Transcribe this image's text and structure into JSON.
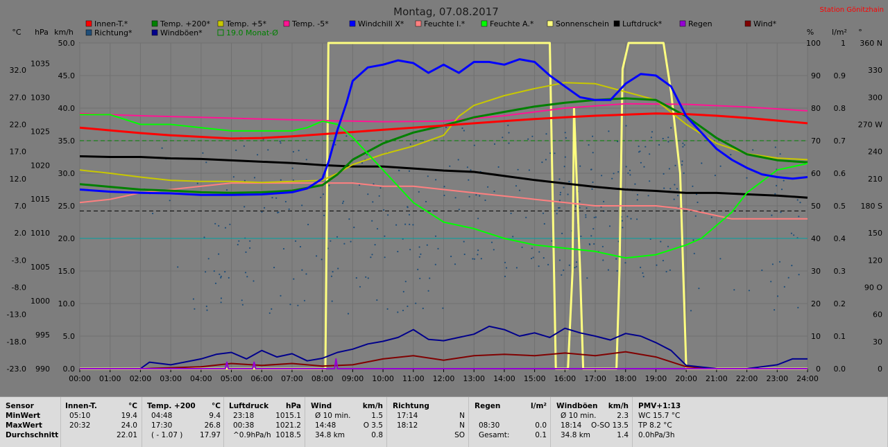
{
  "title": "Montag, 07.08.2017",
  "station": "Station Gönitzhain",
  "axes_left_headers": [
    "°C",
    "hPa",
    "km/h"
  ],
  "axes_right_headers": [
    "%",
    "l/m²",
    "°"
  ],
  "legend": [
    {
      "label": "Innen-T.*",
      "color": "#ff0000"
    },
    {
      "label": "Temp. +200*",
      "color": "#008000"
    },
    {
      "label": "Temp. +5*",
      "color": "#c8c800"
    },
    {
      "label": "Temp. -5*",
      "color": "#ff1493"
    },
    {
      "label": "Windchill X*",
      "color": "#0000ff"
    },
    {
      "label": "Feuchte I.*",
      "color": "#ff8080"
    },
    {
      "label": "Feuchte A.*",
      "color": "#00ff00"
    },
    {
      "label": "Sonnenschein",
      "color": "#ffff80"
    },
    {
      "label": "Luftdruck*",
      "color": "#000000"
    },
    {
      "label": "Regen",
      "color": "#9400d3"
    },
    {
      "label": "Wind*",
      "color": "#800000"
    },
    {
      "label": "Richtung*",
      "color": "#1f4e79"
    },
    {
      "label": "Windböen*",
      "color": "#00008b"
    },
    {
      "label": "19.0 Monat-Ø",
      "color": "#008000"
    }
  ],
  "chart_data": {
    "type": "line",
    "title": "Montag, 07.08.2017",
    "x_ticks": [
      "00:00",
      "01:00",
      "02:00",
      "03:00",
      "04:00",
      "05:00",
      "06:00",
      "07:00",
      "08:00",
      "09:00",
      "10:00",
      "11:00",
      "12:00",
      "13:00",
      "14:00",
      "15:00",
      "16:00",
      "17:00",
      "18:00",
      "19:00",
      "20:00",
      "21:00",
      "22:00",
      "23:00",
      "24:00"
    ],
    "xlim": [
      0,
      24
    ],
    "axes": {
      "temp_c": {
        "ticks": [
          "32.0",
          "27.0",
          "22.0",
          "17.0",
          "12.0",
          "7.0",
          "2.0",
          "-3.0",
          "-8.0",
          "-13.0",
          "-18.0",
          "-23.0"
        ],
        "ylim": [
          -23,
          37
        ]
      },
      "pressure_hpa": {
        "ticks": [
          "1035",
          "1030",
          "1025",
          "1020",
          "1015",
          "1010",
          "1005",
          "1000",
          "995",
          "990"
        ],
        "ylim": [
          990,
          1038
        ]
      },
      "wind_kmh": {
        "ticks": [
          "50.0",
          "45.0",
          "40.0",
          "35.0",
          "30.0",
          "25.0",
          "20.0",
          "15.0",
          "10.0",
          "5.0",
          "0.0"
        ],
        "ylim": [
          0,
          50
        ]
      },
      "humidity_pct": {
        "ticks": [
          "100",
          "90",
          "80",
          "70",
          "60",
          "50",
          "40",
          "30",
          "20",
          "10",
          "0"
        ],
        "ylim": [
          0,
          100
        ]
      },
      "rain_lm2": {
        "ticks": [
          "1",
          "0.9",
          "0.8",
          "0.7",
          "0.6",
          "0.5",
          "0.4",
          "0.3",
          "0.2",
          "0.1",
          "0.0"
        ],
        "ylim": [
          0,
          1
        ]
      },
      "direction_deg": {
        "ticks": [
          "360 N",
          "330",
          "300",
          "270 W",
          "240",
          "210",
          "180 S",
          "150",
          "120",
          "90 O",
          "60",
          "30",
          "0"
        ],
        "ylim": [
          0,
          360
        ]
      }
    },
    "reference_lines": [
      {
        "name": "19.0 Monat-Ø",
        "axis": "temp_c",
        "value": 19.0,
        "color": "#008000",
        "style": "dashed"
      },
      {
        "axis": "pressure_hpa",
        "value": 1013.25,
        "color": "#000000",
        "style": "dashed"
      },
      {
        "axis": "humidity_pct",
        "value": 40,
        "color": "#00a0a0",
        "style": "solid"
      }
    ],
    "series": [
      {
        "name": "Innen-T.*",
        "axis": "temp_c",
        "color": "#ff0000",
        "width": 3,
        "x": [
          0,
          1,
          2,
          3,
          4,
          5,
          6,
          7,
          8,
          9,
          10,
          11,
          12,
          13,
          14,
          15,
          16,
          17,
          18,
          19,
          20,
          21,
          22,
          23,
          24
        ],
        "y": [
          21.4,
          20.9,
          20.4,
          20.0,
          19.7,
          19.4,
          19.5,
          19.8,
          20.2,
          20.6,
          21.0,
          21.4,
          21.8,
          22.2,
          22.6,
          23.0,
          23.3,
          23.6,
          23.8,
          24.0,
          23.9,
          23.6,
          23.2,
          22.7,
          22.2
        ]
      },
      {
        "name": "Temp. +200*",
        "axis": "temp_c",
        "color": "#008000",
        "width": 3,
        "x": [
          0,
          1,
          2,
          3,
          4,
          5,
          6,
          7,
          8,
          8.5,
          9,
          10,
          11,
          12,
          13,
          14,
          15,
          16,
          17,
          18,
          19,
          20,
          21,
          22,
          23,
          24
        ],
        "y": [
          11.0,
          10.5,
          10.0,
          9.8,
          9.5,
          9.4,
          9.5,
          9.8,
          10.8,
          12.8,
          15.5,
          18.5,
          20.5,
          21.8,
          23.3,
          24.3,
          25.3,
          26.0,
          26.5,
          26.8,
          26.5,
          23.5,
          19.5,
          16.5,
          15.4,
          15.0
        ]
      },
      {
        "name": "Temp. +5*",
        "axis": "temp_c",
        "color": "#c8c800",
        "width": 2,
        "x": [
          0,
          1,
          2,
          3,
          4,
          5,
          6,
          7,
          8,
          8.5,
          9,
          10,
          11,
          12,
          12.5,
          13,
          14,
          15,
          16,
          17,
          18,
          19,
          20,
          21,
          22,
          23,
          24
        ],
        "y": [
          13.6,
          13.0,
          12.3,
          11.7,
          11.5,
          11.5,
          11.3,
          11.5,
          11.7,
          13.0,
          14.6,
          16.5,
          18.0,
          20.0,
          23.5,
          25.5,
          27.3,
          28.6,
          29.7,
          29.5,
          28.0,
          26.5,
          22.0,
          18.5,
          16.6,
          15.8,
          15.5
        ]
      },
      {
        "name": "Temp. -5*",
        "axis": "temp_c",
        "color": "#ff1493",
        "width": 2,
        "x": [
          0,
          2,
          4,
          6,
          8,
          10,
          12,
          14,
          16,
          18,
          20,
          22,
          24
        ],
        "y": [
          24.0,
          23.6,
          23.3,
          23.0,
          22.7,
          22.5,
          22.6,
          23.6,
          25.0,
          25.8,
          25.7,
          25.2,
          24.5
        ]
      },
      {
        "name": "Windchill X*",
        "axis": "temp_c",
        "color": "#0000ff",
        "width": 3,
        "x": [
          0,
          1,
          2,
          3,
          4,
          5,
          6,
          7,
          7.5,
          8,
          8.2,
          8.5,
          8.8,
          9,
          9.5,
          10,
          10.5,
          11,
          11.5,
          12,
          12.5,
          13,
          13.5,
          14,
          14.5,
          15,
          15.5,
          16,
          16.5,
          17,
          17.5,
          18,
          18.5,
          19,
          19.5,
          20,
          20.5,
          21,
          21.5,
          22,
          22.5,
          23,
          23.5,
          24
        ],
        "y": [
          10.0,
          9.6,
          9.4,
          9.3,
          9.0,
          9.0,
          9.1,
          9.5,
          10.2,
          12.0,
          15.0,
          21.0,
          26.0,
          30.0,
          32.5,
          33.0,
          33.8,
          33.3,
          31.5,
          33.0,
          31.5,
          33.5,
          33.5,
          33.0,
          34.0,
          33.5,
          31.0,
          29.0,
          27.0,
          26.5,
          26.5,
          29.5,
          31.3,
          31.0,
          29.0,
          23.5,
          20.5,
          17.5,
          15.5,
          14.0,
          12.8,
          12.3,
          12.0,
          12.3
        ]
      },
      {
        "name": "Feuchte I.*",
        "axis": "humidity_pct",
        "color": "#ff8080",
        "width": 2,
        "x": [
          0,
          1,
          2,
          3,
          4,
          5,
          6,
          7,
          8,
          9,
          10,
          11,
          12,
          13,
          14,
          15,
          16,
          17,
          18,
          19,
          20,
          20.5,
          21,
          21.5,
          22,
          23,
          24
        ],
        "y": [
          51,
          52,
          54,
          55,
          56,
          57,
          57,
          57,
          57,
          57,
          56,
          56,
          55,
          54,
          53,
          52,
          51,
          50,
          50,
          50,
          49,
          48,
          47,
          46,
          46,
          46,
          46
        ]
      },
      {
        "name": "Feuchte A.*",
        "axis": "humidity_pct",
        "color": "#00ff00",
        "width": 2,
        "x": [
          0,
          1,
          2,
          3,
          4,
          5,
          6,
          7,
          7.5,
          8,
          8.5,
          9,
          10,
          11,
          12,
          13,
          14,
          15,
          16,
          17,
          18,
          19,
          20,
          20.5,
          21,
          21.5,
          22,
          23,
          24
        ],
        "y": [
          78,
          78,
          75,
          75,
          74,
          73,
          73,
          73,
          74,
          76,
          75,
          71,
          61,
          51,
          45,
          43,
          40,
          38,
          37,
          36,
          34,
          35,
          38,
          40,
          44,
          48,
          54,
          61,
          63
        ]
      },
      {
        "name": "Luftdruck*",
        "axis": "pressure_hpa",
        "color": "#000000",
        "width": 3,
        "x": [
          0,
          1,
          2,
          3,
          4,
          5,
          6,
          7,
          8,
          9,
          10,
          11,
          12,
          13,
          14,
          15,
          16,
          17,
          18,
          19,
          20,
          21,
          22,
          23,
          24
        ],
        "y": [
          1021.3,
          1021.2,
          1021.2,
          1021.0,
          1020.9,
          1020.7,
          1020.5,
          1020.3,
          1020.0,
          1019.8,
          1019.8,
          1019.5,
          1019.2,
          1019.0,
          1018.4,
          1017.8,
          1017.3,
          1016.8,
          1016.4,
          1016.2,
          1015.9,
          1015.9,
          1015.7,
          1015.5,
          1015.2
        ]
      },
      {
        "name": "Sonnenschein",
        "axis": "humidity_pct",
        "color": "#ffff80",
        "width": 3,
        "x": [
          0,
          8.1,
          8.2,
          15.5,
          15.7,
          16.1,
          16.25,
          16.3,
          16.5,
          16.6,
          16.7,
          17.7,
          17.8,
          17.9,
          18.1,
          19.25,
          19.5,
          19.8,
          20.0,
          24
        ],
        "y": [
          0,
          0,
          100,
          100,
          0,
          0,
          30,
          80,
          30,
          0,
          0,
          0,
          30,
          92,
          100,
          100,
          85,
          60,
          0,
          0
        ]
      },
      {
        "name": "Wind*",
        "axis": "wind_kmh",
        "color": "#800000",
        "width": 2,
        "x": [
          0,
          2,
          4,
          5,
          6,
          7,
          8,
          9,
          10,
          11,
          12,
          13,
          14,
          15,
          16,
          17,
          18,
          19,
          20,
          21,
          22,
          23,
          24
        ],
        "y": [
          0,
          0,
          0.3,
          0.8,
          0.5,
          0.8,
          0.4,
          0.6,
          1.5,
          2.0,
          1.3,
          2.0,
          2.2,
          2.0,
          2.4,
          2.0,
          2.6,
          1.8,
          0.3,
          0,
          0,
          0,
          0
        ]
      },
      {
        "name": "Windböen*",
        "axis": "wind_kmh",
        "color": "#00008b",
        "width": 2,
        "x": [
          0,
          2,
          2.3,
          3,
          4,
          4.5,
          5,
          5.5,
          6,
          6.5,
          7,
          7.5,
          8,
          8.5,
          9,
          9.5,
          10,
          10.5,
          11,
          11.5,
          12,
          12.5,
          13,
          13.5,
          14,
          14.5,
          15,
          15.5,
          16,
          16.5,
          17,
          17.5,
          18,
          18.5,
          19,
          19.5,
          20,
          21,
          22,
          23,
          23.5,
          24
        ],
        "y": [
          0,
          0,
          1.0,
          0.6,
          1.5,
          2.2,
          2.5,
          1.5,
          2.8,
          1.8,
          2.3,
          1.2,
          1.6,
          2.5,
          3.0,
          3.8,
          4.2,
          4.8,
          6.0,
          4.5,
          4.3,
          4.8,
          5.3,
          6.5,
          6.0,
          5.0,
          5.5,
          4.8,
          6.2,
          5.5,
          5.0,
          4.4,
          5.4,
          5.0,
          4.0,
          2.8,
          0.5,
          0,
          0,
          0.6,
          1.5,
          1.5
        ]
      },
      {
        "name": "Regen",
        "axis": "rain_lm2",
        "color": "#9400d3",
        "width": 2,
        "x": [
          0,
          4.8,
          4.85,
          4.9,
          5.7,
          5.75,
          5.8,
          8.4,
          8.45,
          8.5,
          24
        ],
        "y": [
          0,
          0,
          0.02,
          0,
          0,
          0.02,
          0,
          0,
          0.03,
          0,
          0
        ]
      }
    ]
  },
  "stats": {
    "headers": [
      "Sensor",
      "Innen-T.",
      "°C",
      "Temp. +200",
      "°C",
      "Luftdruck",
      "hPa",
      "Wind",
      "km/h",
      "Richtung",
      "Regen",
      "l/m²",
      "Windböen",
      "km/h",
      "PMV+1:13"
    ],
    "row_labels": [
      "MinWert",
      "MaxWert",
      "Durchschnitt"
    ],
    "innen": [
      [
        "05:10",
        "19.4"
      ],
      [
        "20:32",
        "24.0"
      ],
      [
        "",
        "22.01"
      ]
    ],
    "temp200": [
      [
        "04:48",
        "9.4"
      ],
      [
        "17:30",
        "26.8"
      ],
      [
        "( - 1.07 )",
        "17.97"
      ]
    ],
    "luftdruck": [
      [
        "23:18",
        "1015.1"
      ],
      [
        "00:38",
        "1021.2"
      ],
      [
        "^0.9hPa/h",
        "1018.5"
      ]
    ],
    "wind": [
      [
        "Ø 10 min.",
        "1.5"
      ],
      [
        "14:48",
        "O 3.5"
      ],
      [
        "34.8 km",
        "0.8"
      ]
    ],
    "richtung": [
      [
        "17:14",
        "N"
      ],
      [
        "18:12",
        "N"
      ],
      [
        "",
        "SO"
      ]
    ],
    "regen": [
      [
        "",
        ""
      ],
      [
        "08:30",
        "0.0"
      ],
      [
        "Gesamt:",
        "0.1"
      ]
    ],
    "windboeen": [
      [
        "Ø 10 min.",
        "2.3"
      ],
      [
        "18:14",
        "O-SO 13.5"
      ],
      [
        "34.8 km",
        "1.4"
      ]
    ],
    "pmv": [
      "WC 15.7 °C",
      "TP 8.2 °C",
      "0.0hPa/3h"
    ]
  }
}
